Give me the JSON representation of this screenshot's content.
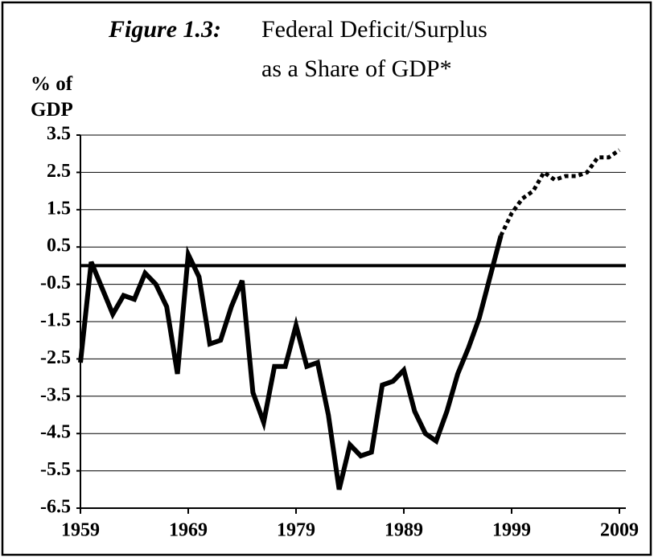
{
  "chart_data": {
    "type": "line",
    "title_prefix": "Figure 1.3:",
    "title": [
      "Federal Deficit/Surplus",
      "as a Share of GDP*"
    ],
    "y_label": [
      "% of",
      "GDP"
    ],
    "color": "#000000",
    "grid": true,
    "xlim": [
      1959,
      2009
    ],
    "xticks": [
      1959,
      1969,
      1979,
      1989,
      1999,
      2009
    ],
    "ylim": [
      -6.5,
      3.5
    ],
    "yticks": [
      3.5,
      2.5,
      1.5,
      0.5,
      -0.5,
      -1.5,
      -2.5,
      -3.5,
      -4.5,
      -5.5,
      -6.5
    ],
    "series": [
      {
        "style": "solid",
        "x": [
          1959,
          1960,
          1961,
          1962,
          1963,
          1964,
          1965,
          1966,
          1967,
          1968,
          1969,
          1970,
          1971,
          1972,
          1973,
          1974,
          1975,
          1976,
          1977,
          1978,
          1979,
          1980,
          1981,
          1982,
          1983,
          1984,
          1985,
          1986,
          1987,
          1988,
          1989,
          1990,
          1991,
          1992,
          1993,
          1994,
          1995,
          1996,
          1997,
          1998
        ],
        "values": [
          -2.6,
          0.1,
          -0.6,
          -1.3,
          -0.8,
          -0.9,
          -0.2,
          -0.5,
          -1.1,
          -2.9,
          0.3,
          -0.3,
          -2.1,
          -2.0,
          -1.1,
          -0.4,
          -3.4,
          -4.2,
          -2.7,
          -2.7,
          -1.6,
          -2.7,
          -2.6,
          -4.0,
          -6.0,
          -4.8,
          -5.1,
          -5.0,
          -3.2,
          -3.1,
          -2.8,
          -3.9,
          -4.5,
          -4.7,
          -3.9,
          -2.9,
          -2.2,
          -1.4,
          -0.3,
          0.8
        ]
      },
      {
        "style": "dotted",
        "x": [
          1998,
          1999,
          2000,
          2001,
          2002,
          2003,
          2004,
          2005,
          2006,
          2007,
          2008,
          2009
        ],
        "values": [
          0.8,
          1.4,
          1.8,
          2.0,
          2.5,
          2.3,
          2.4,
          2.4,
          2.5,
          2.9,
          2.9,
          3.1
        ]
      }
    ]
  }
}
